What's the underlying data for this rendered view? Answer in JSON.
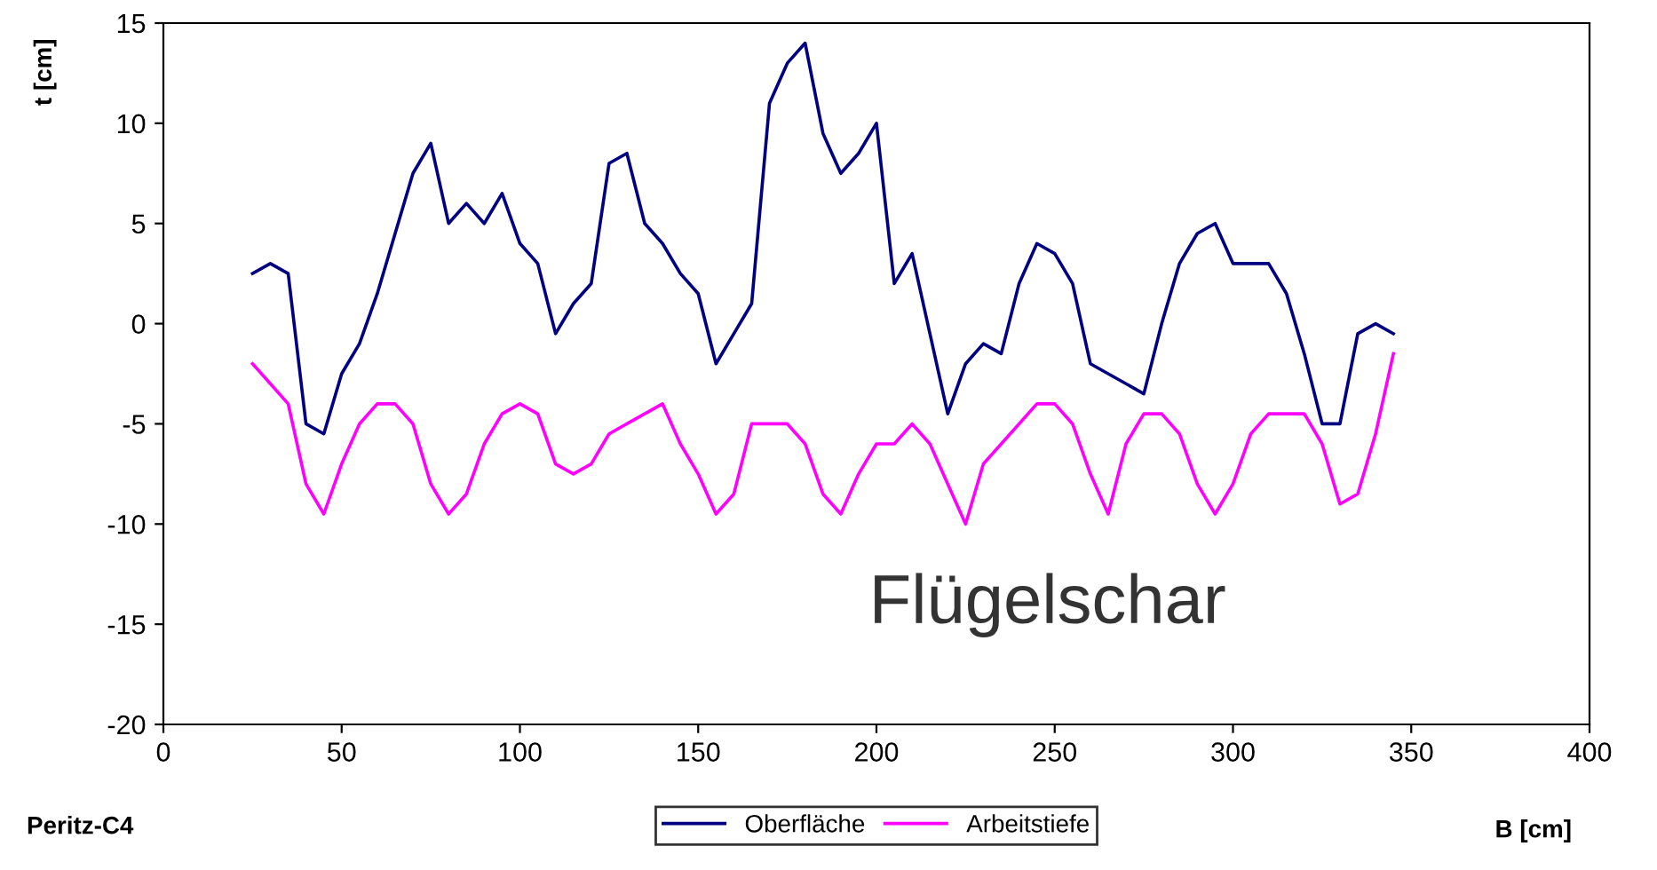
{
  "chart_data": {
    "type": "line",
    "xlabel": "B [cm]",
    "ylabel": "t [cm]",
    "x": [
      25,
      30,
      35,
      40,
      45,
      50,
      55,
      60,
      65,
      70,
      75,
      80,
      85,
      90,
      95,
      100,
      105,
      110,
      115,
      120,
      125,
      130,
      135,
      140,
      145,
      150,
      155,
      160,
      165,
      170,
      175,
      180,
      185,
      190,
      195,
      200,
      205,
      210,
      215,
      220,
      225,
      230,
      235,
      240,
      245,
      250,
      255,
      260,
      265,
      270,
      275,
      280,
      285,
      290,
      295,
      300,
      305,
      310,
      315,
      320,
      325,
      330,
      335,
      340,
      345
    ],
    "series": [
      {
        "name": "Oberfläche",
        "color": "#000080",
        "values": [
          2.5,
          3,
          2.5,
          -5,
          -5.5,
          -2.5,
          -1,
          1.5,
          4.5,
          7.5,
          9,
          5,
          6,
          5,
          6.5,
          4,
          3,
          -0.5,
          1,
          2,
          8,
          8.5,
          5,
          4,
          2.5,
          1.5,
          -2,
          -0.5,
          1,
          11,
          13,
          14,
          9.5,
          7.5,
          8.5,
          10,
          2,
          3.5,
          -0.5,
          -4.5,
          -2,
          -1,
          -1.5,
          2,
          4,
          3.5,
          2,
          -2,
          -2.5,
          -3,
          -3.5,
          0,
          3,
          4.5,
          5,
          3,
          3,
          3,
          1.5,
          -1.5,
          -5,
          -5,
          -0.5,
          0,
          -0.5
        ]
      },
      {
        "name": "Arbeitstiefe",
        "color": "#ff00ff",
        "values": [
          -2,
          -3,
          -4,
          -8,
          -9.5,
          -7,
          -5,
          -4,
          -4,
          -5,
          -8,
          -9.5,
          -8.5,
          -6,
          -4.5,
          -4,
          -4.5,
          -7,
          -7.5,
          -7,
          -5.5,
          -5,
          -4.5,
          -4,
          -6,
          -7.5,
          -9.5,
          -8.5,
          -5,
          -5,
          -5,
          -6,
          -8.5,
          -9.5,
          -7.5,
          -6,
          -6,
          -5,
          -6,
          -8,
          -10,
          -7,
          -6,
          -5,
          -4,
          -4,
          -5,
          -7.5,
          -9.5,
          -6,
          -4.5,
          -4.5,
          -5.5,
          -8,
          -9.5,
          -8,
          -5.5,
          -4.5,
          -4.5,
          -4.5,
          -6,
          -9,
          -8.5,
          -5.5,
          -1.5
        ]
      }
    ],
    "xlim": [
      0,
      400
    ],
    "xticks": [
      0,
      50,
      100,
      150,
      200,
      250,
      300,
      350,
      400
    ],
    "ylim": [
      -20,
      15
    ],
    "yticks": [
      -20,
      -15,
      -10,
      -5,
      0,
      5,
      10,
      15
    ],
    "grid": false,
    "legend": "bottom",
    "marker": "none",
    "line_style": "solid",
    "annotations": [
      "Flügelschar",
      "Peritz-C4"
    ]
  }
}
